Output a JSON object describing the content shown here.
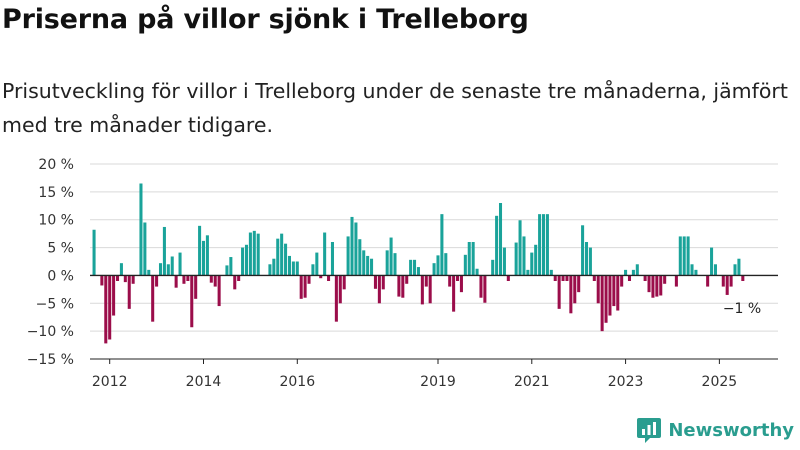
{
  "title": "Priserna på villor sjönk i Trelleborg",
  "subtitle": "Prisutveckling för villor i Trelleborg under de senaste tre månaderna, jämfört med tre månader tidigare.",
  "brand": {
    "name": "Newsworthy",
    "icon": "bar-chart-logo-icon",
    "color": "#2a9d8f"
  },
  "colors": {
    "positive": "#1aa39a",
    "negative": "#9b0d4a",
    "grid": "#d9d9d9",
    "axis": "#222222"
  },
  "chart_data": {
    "type": "bar",
    "ylim": [
      -15,
      20
    ],
    "yticks": [
      -15,
      -10,
      -5,
      0,
      5,
      10,
      15,
      20
    ],
    "ytick_labels": [
      "−15 %",
      "−10 %",
      "−5 %",
      "0 %",
      "5 %",
      "10 %",
      "15 %",
      "20 %"
    ],
    "xlim": [
      2011.58,
      2026.25
    ],
    "xticks": [
      2012,
      2014,
      2016,
      2019,
      2021,
      2023,
      2025
    ],
    "xtick_labels": [
      "2012",
      "2014",
      "2016",
      "2019",
      "2021",
      "2023",
      "2025"
    ],
    "grid": true,
    "end_label": "−1 %",
    "start": "2011-09",
    "frequency": "monthly",
    "values": [
      8.2,
      0,
      -1.8,
      -12.2,
      -11.5,
      -7.2,
      -1.0,
      2.2,
      -1.2,
      -6.0,
      -1.5,
      0,
      16.5,
      9.5,
      1.0,
      -8.3,
      -2.0,
      2.2,
      8.7,
      2.0,
      3.4,
      -2.2,
      4.1,
      -1.5,
      -1.0,
      -9.3,
      -4.2,
      8.9,
      6.2,
      7.2,
      -1.3,
      -2.0,
      -5.5,
      0,
      1.8,
      3.3,
      -2.5,
      -1.0,
      5.0,
      5.5,
      7.7,
      8.0,
      7.5,
      0,
      0,
      2.0,
      3.0,
      6.6,
      7.5,
      5.7,
      3.5,
      2.5,
      2.5,
      -4.2,
      -4.0,
      -1.5,
      2.0,
      4.1,
      -0.5,
      7.7,
      -1.0,
      6.0,
      -8.3,
      -5.0,
      -2.5,
      7.0,
      10.5,
      9.5,
      6.5,
      4.5,
      3.5,
      3.0,
      -2.4,
      -5.0,
      -2.5,
      4.5,
      6.8,
      4.0,
      -3.8,
      -4.0,
      -1.5,
      2.8,
      2.8,
      1.5,
      -5.2,
      -2.0,
      -5.0,
      2.2,
      3.6,
      11.0,
      4.0,
      -2.0,
      -6.5,
      -1.0,
      -3.0,
      3.7,
      6.0,
      6.0,
      1.2,
      -4.0,
      -4.9,
      0,
      2.8,
      10.7,
      13.0,
      5.0,
      -1.0,
      0,
      5.9,
      9.9,
      7.0,
      1.0,
      4.1,
      5.5,
      11.0,
      11.0,
      11.0,
      1.0,
      -1.0,
      -6.0,
      -1.0,
      -1.0,
      -6.8,
      -5.0,
      -3.0,
      9.0,
      6.0,
      5.0,
      -1.0,
      -5.0,
      -10.0,
      -8.5,
      -7.2,
      -5.5,
      -6.3,
      -2.0,
      1.0,
      -1.0,
      1.0,
      2.0,
      0,
      -1.0,
      -3.0,
      -4.0,
      -3.8,
      -3.6,
      -1.5,
      0,
      0,
      -2.0,
      7.0,
      7.0,
      7.0,
      2.0,
      1.0,
      0,
      0,
      -2.0,
      5.0,
      2.0,
      0,
      -2.0,
      -3.5,
      -2.0,
      2.0,
      3.0,
      -1.0
    ]
  }
}
